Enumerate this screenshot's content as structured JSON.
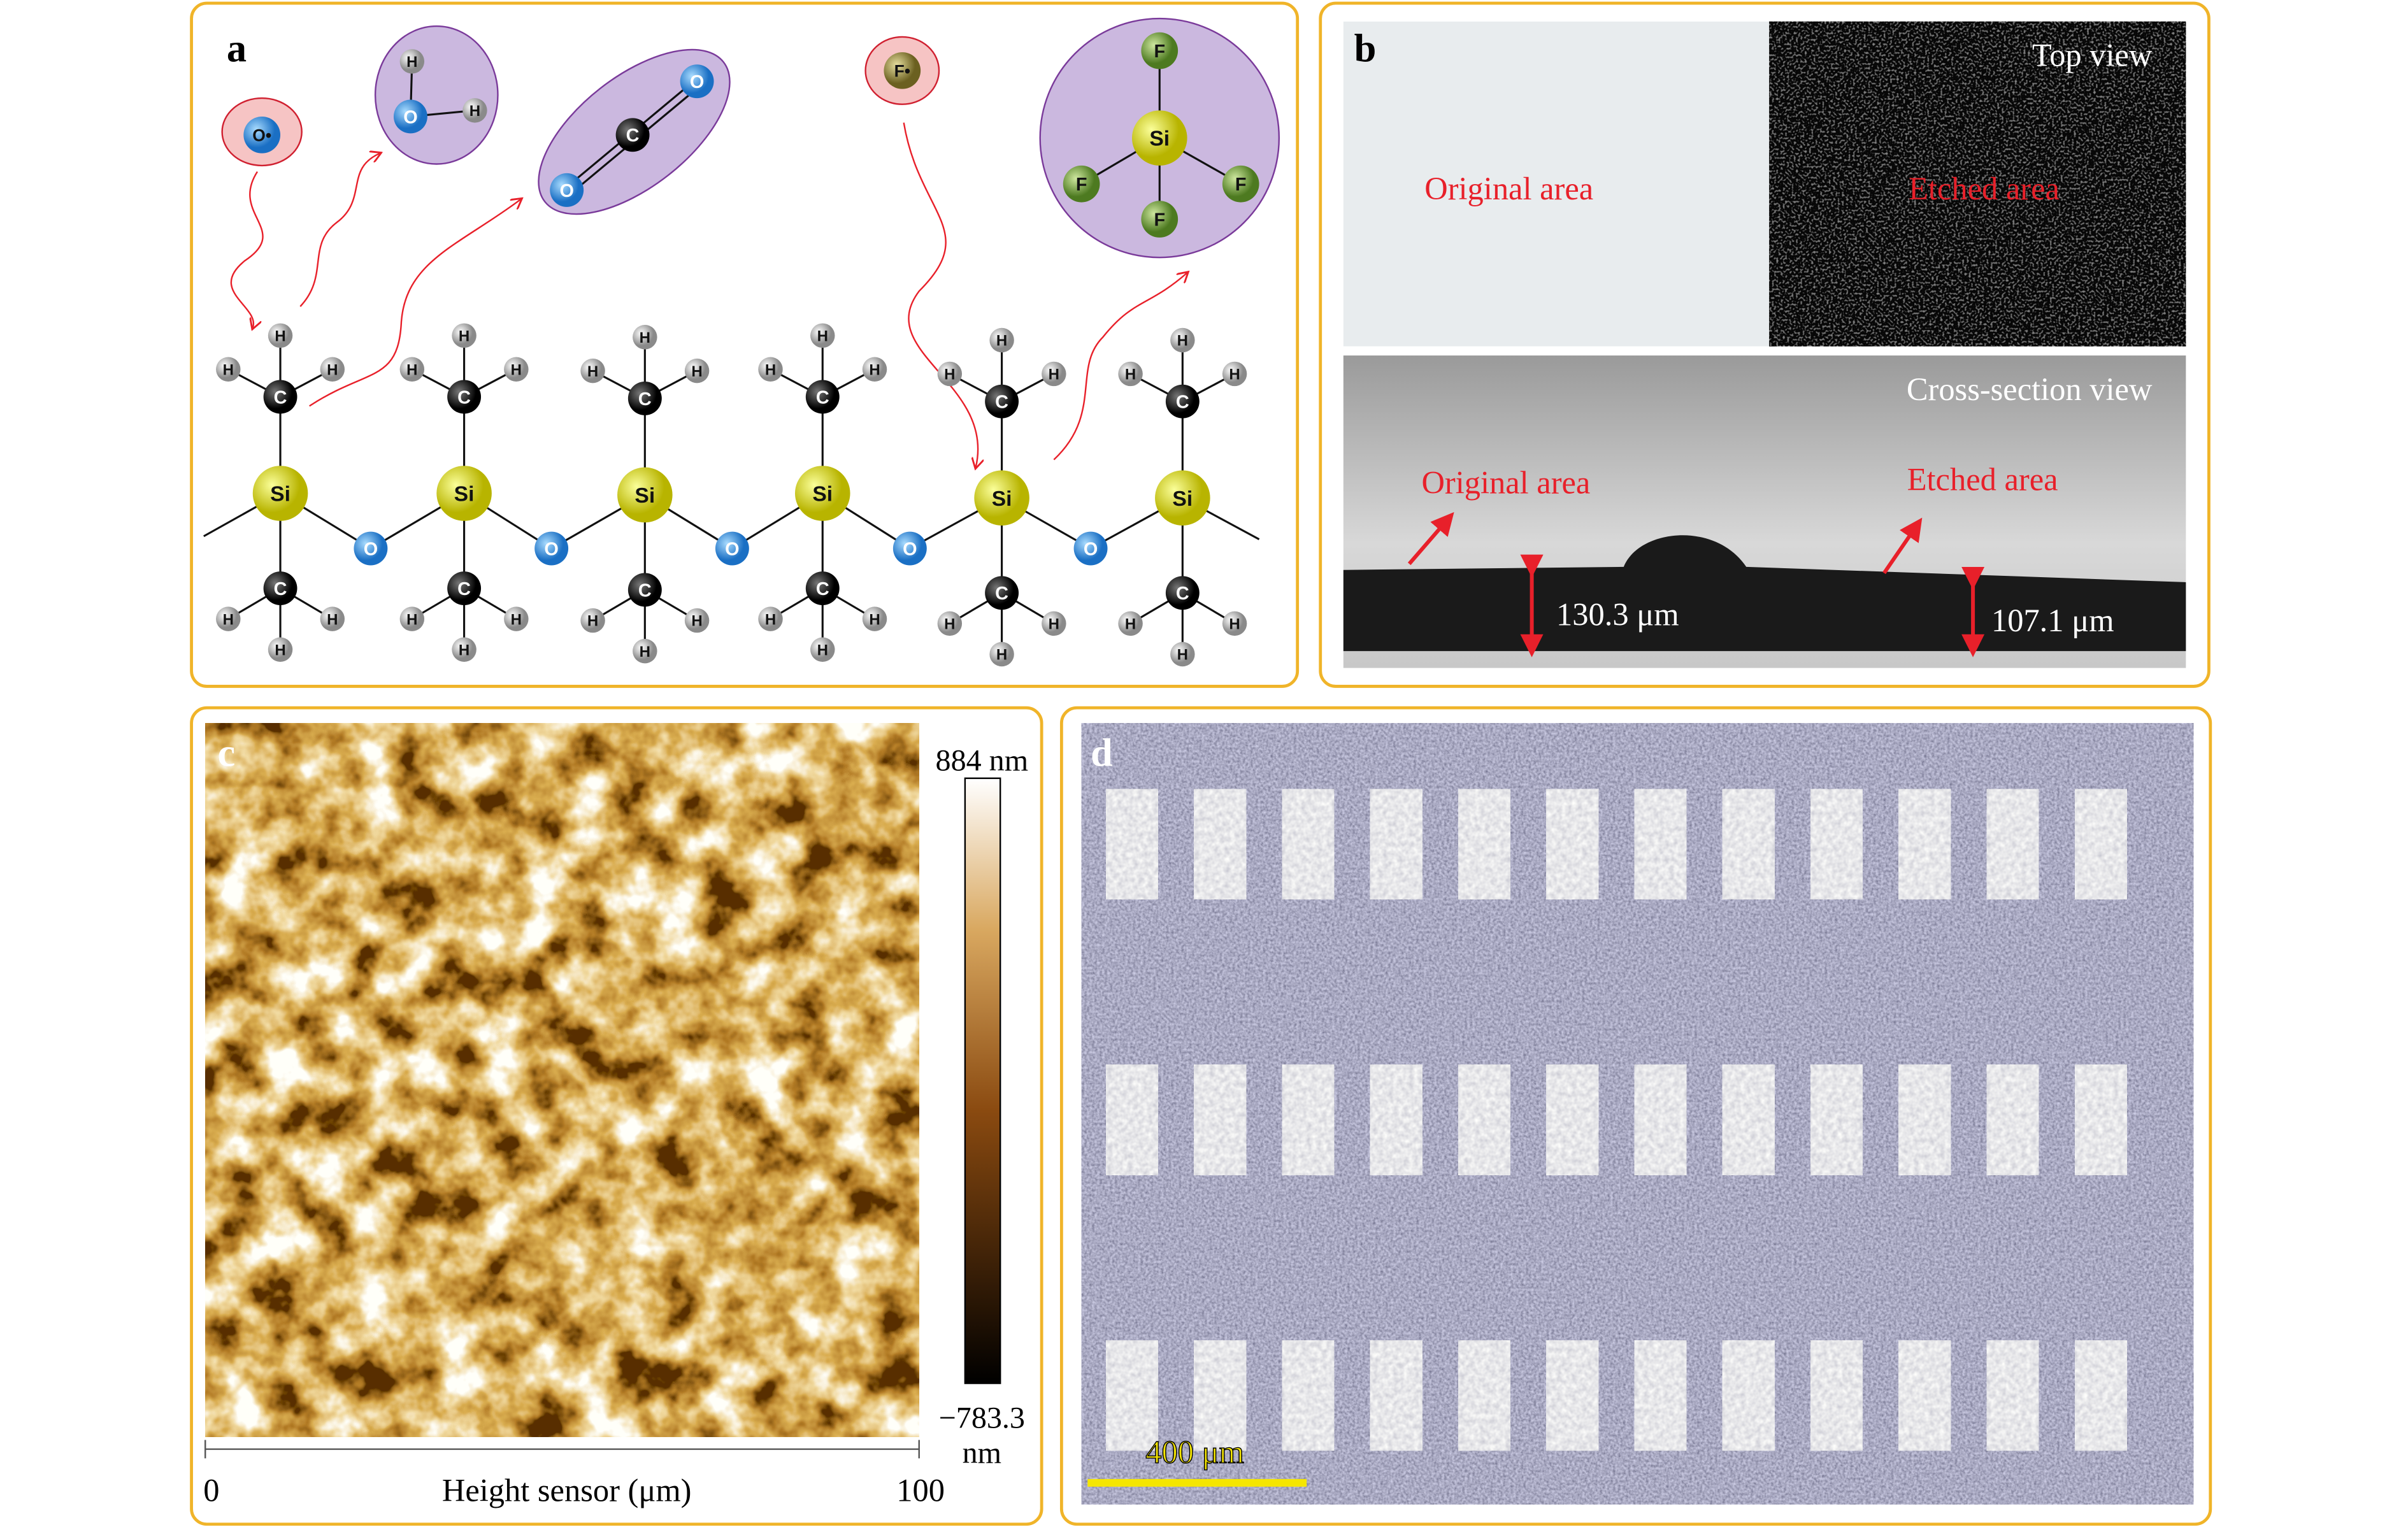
{
  "panel_a": {
    "label": "a",
    "elements": {
      "H": "H",
      "C": "C",
      "Si": "Si",
      "O": "O",
      "F": "F",
      "O_radical": "O•",
      "F_radical": "F•"
    }
  },
  "panel_b": {
    "label": "b",
    "top_view": {
      "title": "Top view",
      "original": "Original area",
      "etched": "Etched area"
    },
    "cross_section": {
      "title": "Cross-section view",
      "original": "Original area",
      "etched": "Etched area",
      "original_thickness": "130.3 μm",
      "etched_thickness": "107.1 μm"
    }
  },
  "panel_c": {
    "label": "c",
    "colorbar_max": "884 nm",
    "colorbar_min": [
      "−783.3",
      "nm"
    ],
    "x_axis": {
      "min": "0",
      "max": "100",
      "label": "Height sensor (μm)"
    }
  },
  "panel_d": {
    "label": "d",
    "scale_bar": "400 μm"
  }
}
